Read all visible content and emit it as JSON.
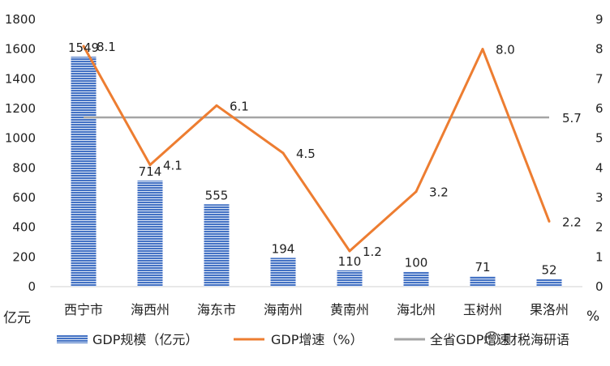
{
  "chart_data": {
    "type": "bar",
    "categories": [
      "西宁市",
      "海西州",
      "海东市",
      "海南州",
      "黄南州",
      "海北州",
      "玉树州",
      "果洛州"
    ],
    "series": [
      {
        "name": "GDP规模（亿元）",
        "type": "bar",
        "axis": "left",
        "values": [
          1549,
          714,
          555,
          194,
          110,
          100,
          71,
          52
        ],
        "color": "#4472C4"
      },
      {
        "name": "GDP增速（%）",
        "type": "line",
        "axis": "right",
        "values": [
          8.1,
          4.1,
          6.1,
          4.5,
          1.2,
          3.2,
          8.0,
          2.2
        ],
        "color": "#ED7D31"
      },
      {
        "name": "全省GDP增速",
        "type": "line",
        "axis": "right",
        "values": [
          5.7,
          5.7,
          5.7,
          5.7,
          5.7,
          5.7,
          5.7,
          5.7
        ],
        "color": "#A5A5A5"
      }
    ],
    "bar_labels": [
      "1549",
      "714",
      "555",
      "194",
      "110",
      "100",
      "71",
      "52"
    ],
    "line_labels": [
      "8.1",
      "4.1",
      "6.1",
      "4.5",
      "1.2",
      "3.2",
      "8.0",
      "2.2"
    ],
    "avg_label": "5.7",
    "ylim_left": [
      0,
      1800
    ],
    "yticks_left": [
      "0",
      "200",
      "400",
      "600",
      "800",
      "1000",
      "1200",
      "1400",
      "1600",
      "1800"
    ],
    "ylim_right": [
      0,
      9
    ],
    "yticks_right": [
      "0",
      "1",
      "2",
      "3",
      "4",
      "5",
      "6",
      "7",
      "8",
      "9"
    ],
    "ylabel_left": "亿元",
    "ylabel_right": "%",
    "grid": false,
    "legend_position": "bottom"
  },
  "legend": {
    "bar": "GDP规模（亿元）",
    "line": "GDP增速（%）",
    "avg": "全省GDP增速"
  },
  "watermark": "财税海研语",
  "colors": {
    "bar": "#4472C4",
    "line": "#ED7D31",
    "avg": "#A5A5A5"
  }
}
